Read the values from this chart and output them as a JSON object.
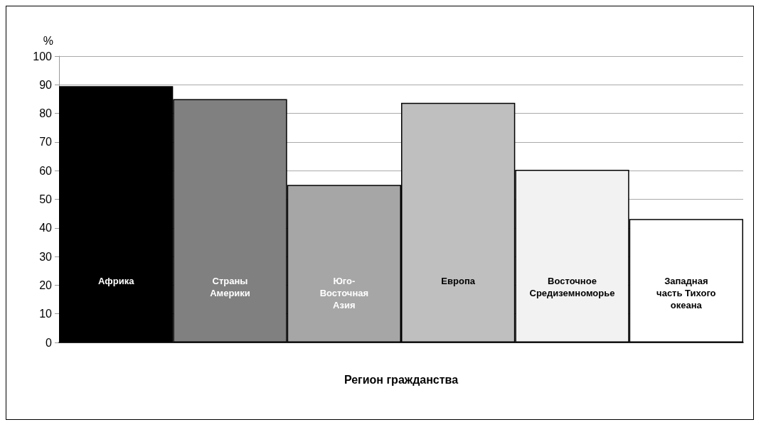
{
  "chart_data": {
    "type": "bar",
    "xlabel": "Регион гражданства",
    "ylabel": "%",
    "categories": [
      "Африка",
      "Страны Америки",
      "Юго-Восточная Азия",
      "Европа",
      "Восточное Средиземноморье",
      "Западная часть Тихого океана"
    ],
    "values": [
      89.5,
      85,
      55,
      83.7,
      60.3,
      43.1
    ],
    "colors": [
      "#000000",
      "#808080",
      "#a6a6a6",
      "#bfbfbf",
      "#f2f2f2",
      "#ffffff"
    ],
    "ylim": [
      0,
      100
    ],
    "yticks": [
      0,
      10,
      20,
      30,
      40,
      50,
      60,
      70,
      80,
      90,
      100
    ],
    "grid": "y"
  }
}
